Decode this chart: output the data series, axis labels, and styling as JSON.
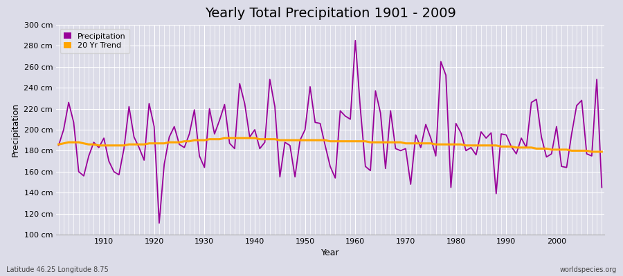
{
  "title": "Yearly Total Precipitation 1901 - 2009",
  "xlabel": "Year",
  "ylabel": "Precipitation",
  "subtitle": "Latitude 46.25 Longitude 8.75",
  "watermark": "worldspecies.org",
  "ylim": [
    100,
    300
  ],
  "yticks": [
    100,
    120,
    140,
    160,
    180,
    200,
    220,
    240,
    260,
    280,
    300
  ],
  "ytick_labels": [
    "100 cm",
    "120 cm",
    "140 cm",
    "160 cm",
    "180 cm",
    "200 cm",
    "220 cm",
    "240 cm",
    "260 cm",
    "280 cm",
    "300 cm"
  ],
  "xticks": [
    1910,
    1920,
    1930,
    1940,
    1950,
    1960,
    1970,
    1980,
    1990,
    2000
  ],
  "precip_color": "#990099",
  "trend_color": "#FFA500",
  "bg_color": "#dcdce8",
  "plot_bg_color": "#dcdce8",
  "grid_color": "#ffffff",
  "years": [
    1901,
    1902,
    1903,
    1904,
    1905,
    1906,
    1907,
    1908,
    1909,
    1910,
    1911,
    1912,
    1913,
    1914,
    1915,
    1916,
    1917,
    1918,
    1919,
    1920,
    1921,
    1922,
    1923,
    1924,
    1925,
    1926,
    1927,
    1928,
    1929,
    1930,
    1931,
    1932,
    1933,
    1934,
    1935,
    1936,
    1937,
    1938,
    1939,
    1940,
    1941,
    1942,
    1943,
    1944,
    1945,
    1946,
    1947,
    1948,
    1949,
    1950,
    1951,
    1952,
    1953,
    1954,
    1955,
    1956,
    1957,
    1958,
    1959,
    1960,
    1961,
    1962,
    1963,
    1964,
    1965,
    1966,
    1967,
    1968,
    1969,
    1970,
    1971,
    1972,
    1973,
    1974,
    1975,
    1976,
    1977,
    1978,
    1979,
    1980,
    1981,
    1982,
    1983,
    1984,
    1985,
    1986,
    1987,
    1988,
    1989,
    1990,
    1991,
    1992,
    1993,
    1994,
    1995,
    1996,
    1997,
    1998,
    1999,
    2000,
    2001,
    2002,
    2003,
    2004,
    2005,
    2006,
    2007,
    2008,
    2009
  ],
  "precipitation": [
    185,
    200,
    226,
    207,
    160,
    156,
    175,
    188,
    183,
    192,
    170,
    160,
    157,
    182,
    222,
    193,
    183,
    171,
    225,
    203,
    111,
    167,
    193,
    203,
    186,
    183,
    196,
    219,
    175,
    164,
    220,
    196,
    209,
    224,
    187,
    182,
    244,
    225,
    193,
    200,
    182,
    188,
    248,
    222,
    155,
    188,
    185,
    155,
    190,
    200,
    241,
    207,
    206,
    185,
    165,
    154,
    218,
    213,
    210,
    285,
    220,
    165,
    161,
    237,
    216,
    163,
    218,
    182,
    180,
    182,
    148,
    195,
    183,
    205,
    192,
    175,
    265,
    252,
    145,
    206,
    197,
    180,
    183,
    176,
    198,
    192,
    197,
    139,
    196,
    195,
    184,
    177,
    192,
    183,
    226,
    229,
    193,
    174,
    177,
    203,
    165,
    164,
    196,
    223,
    228,
    177,
    175,
    248,
    145
  ],
  "trend": [
    186,
    187,
    188,
    188,
    188,
    187,
    186,
    186,
    185,
    185,
    185,
    185,
    185,
    185,
    186,
    186,
    186,
    186,
    187,
    187,
    187,
    187,
    188,
    188,
    188,
    189,
    189,
    190,
    190,
    190,
    191,
    191,
    191,
    192,
    192,
    192,
    192,
    192,
    192,
    192,
    191,
    191,
    191,
    191,
    190,
    190,
    190,
    190,
    190,
    190,
    190,
    190,
    190,
    190,
    189,
    189,
    189,
    189,
    189,
    189,
    189,
    189,
    188,
    188,
    188,
    188,
    188,
    188,
    188,
    187,
    187,
    187,
    187,
    187,
    187,
    186,
    186,
    186,
    186,
    186,
    186,
    185,
    185,
    185,
    185,
    185,
    185,
    185,
    184,
    184,
    184,
    183,
    183,
    183,
    183,
    182,
    182,
    182,
    181,
    181,
    181,
    181,
    180,
    180,
    180,
    180,
    179,
    179,
    179
  ],
  "title_fontsize": 14,
  "axis_label_fontsize": 9,
  "tick_fontsize": 8,
  "legend_fontsize": 8
}
